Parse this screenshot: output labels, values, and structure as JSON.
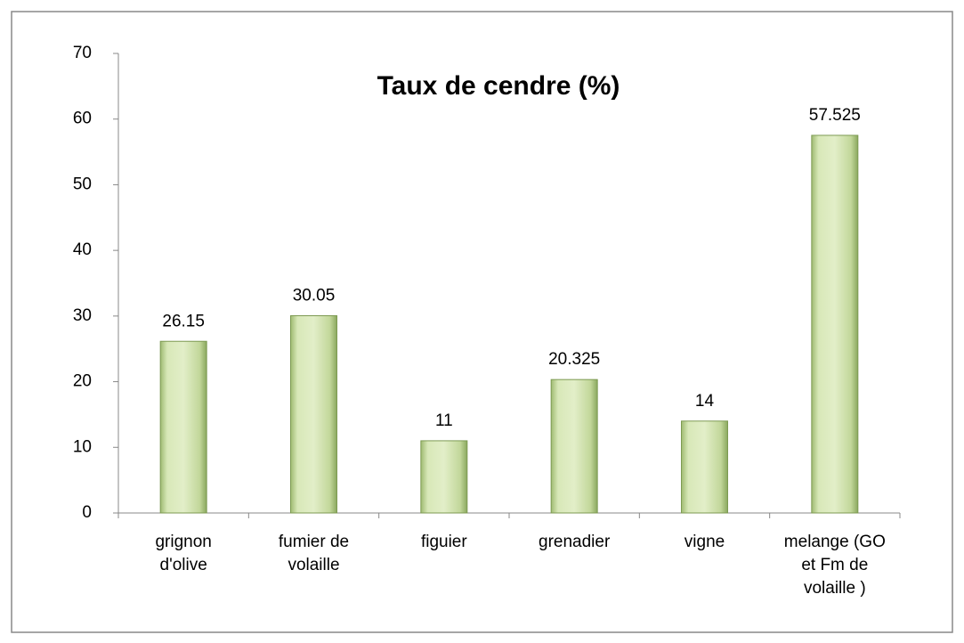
{
  "chart_data": {
    "type": "bar",
    "title": "Taux de cendre (%)",
    "categories": [
      "grignon\nd'olive",
      "fumier de\nvolaille",
      "figuier",
      "grenadier",
      "vigne",
      "melange (GO\net Fm de\nvolaille )"
    ],
    "values": [
      26.15,
      30.05,
      11,
      20.325,
      14,
      57.525
    ],
    "color": "#c4d89c",
    "ylim": [
      0,
      70
    ],
    "yticks": [
      0,
      10,
      20,
      30,
      40,
      50,
      60,
      70
    ],
    "grid": false
  }
}
